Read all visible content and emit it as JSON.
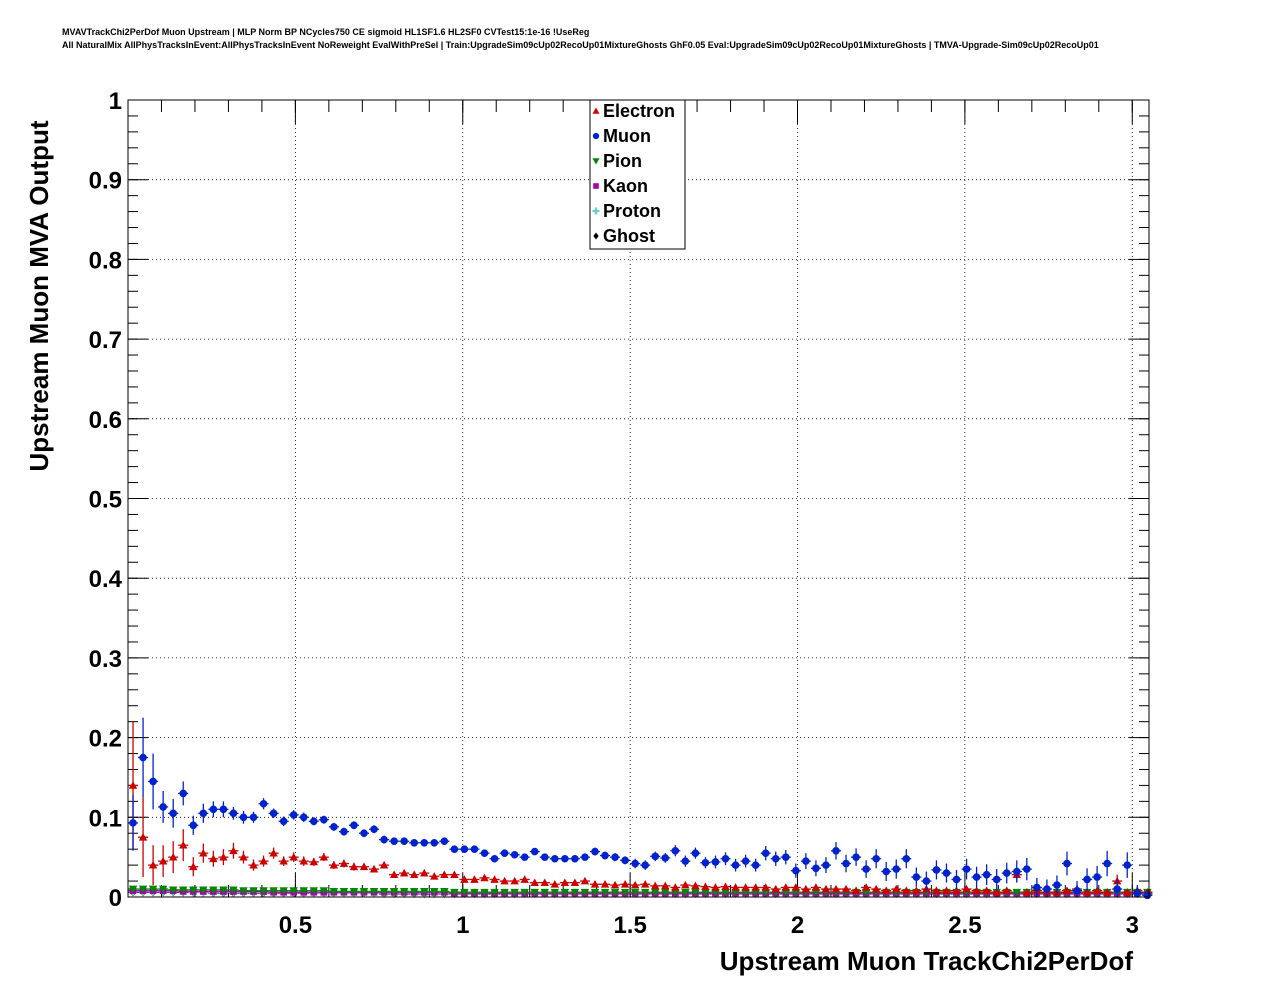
{
  "header": {
    "line1": "MVAVTrackChi2PerDof Muon Upstream | MLP Norm BP NCycles750 CE sigmoid HL1SF1.6 HL2SF0 CVTest15:1e-16 !UseReg",
    "line2": "All NaturalMix AllPhysTracksInEvent:AllPhysTracksInEvent NoReweight EvalWithPreSel | Train:UpgradeSim09cUp02RecoUp01MixtureGhosts GhF0.05 Eval:UpgradeSim09cUp02RecoUp01MixtureGhosts | TMVA-Upgrade-Sim09cUp02RecoUp01"
  },
  "chart_data": {
    "type": "scatter",
    "xlabel": "Upstream Muon TrackChi2PerDof",
    "ylabel": "Upstream Muon MVA Output",
    "xlim": [
      0,
      3.05
    ],
    "ylim": [
      0,
      1
    ],
    "xticks": [
      "0.5",
      "1",
      "1.5",
      "2",
      "2.5",
      "3"
    ],
    "yticks": [
      "0",
      "0.1",
      "0.2",
      "0.3",
      "0.4",
      "0.5",
      "0.6",
      "0.7",
      "0.8",
      "0.9",
      "1"
    ],
    "grid": true,
    "legend_position": "top-center",
    "x": [
      0.015,
      0.045,
      0.075,
      0.105,
      0.135,
      0.165,
      0.195,
      0.225,
      0.255,
      0.285,
      0.315,
      0.345,
      0.375,
      0.405,
      0.435,
      0.465,
      0.495,
      0.525,
      0.555,
      0.585,
      0.615,
      0.645,
      0.675,
      0.705,
      0.735,
      0.765,
      0.795,
      0.825,
      0.855,
      0.885,
      0.915,
      0.945,
      0.975,
      1.005,
      1.035,
      1.065,
      1.095,
      1.125,
      1.155,
      1.185,
      1.215,
      1.245,
      1.275,
      1.305,
      1.335,
      1.365,
      1.395,
      1.425,
      1.455,
      1.485,
      1.515,
      1.545,
      1.575,
      1.605,
      1.635,
      1.665,
      1.695,
      1.725,
      1.755,
      1.785,
      1.815,
      1.845,
      1.875,
      1.905,
      1.935,
      1.965,
      1.995,
      2.025,
      2.055,
      2.085,
      2.115,
      2.145,
      2.175,
      2.205,
      2.235,
      2.265,
      2.295,
      2.325,
      2.355,
      2.385,
      2.415,
      2.445,
      2.475,
      2.505,
      2.535,
      2.565,
      2.595,
      2.625,
      2.655,
      2.685,
      2.715,
      2.745,
      2.775,
      2.805,
      2.835,
      2.865,
      2.895,
      2.925,
      2.955,
      2.985,
      3.015,
      3.045
    ],
    "series": [
      {
        "name": "Electron",
        "color": "#cc0000",
        "marker": "triangle-up",
        "values": [
          0.14,
          0.075,
          0.04,
          0.045,
          0.05,
          0.065,
          0.038,
          0.055,
          0.048,
          0.05,
          0.058,
          0.05,
          0.04,
          0.045,
          0.055,
          0.045,
          0.05,
          0.045,
          0.044,
          0.05,
          0.04,
          0.042,
          0.038,
          0.038,
          0.035,
          0.04,
          0.028,
          0.03,
          0.028,
          0.03,
          0.026,
          0.028,
          0.028,
          0.022,
          0.022,
          0.024,
          0.022,
          0.02,
          0.02,
          0.022,
          0.018,
          0.018,
          0.016,
          0.018,
          0.018,
          0.02,
          0.016,
          0.016,
          0.015,
          0.016,
          0.015,
          0.016,
          0.014,
          0.014,
          0.012,
          0.015,
          0.014,
          0.013,
          0.012,
          0.013,
          0.012,
          0.012,
          0.012,
          0.012,
          0.01,
          0.012,
          0.012,
          0.01,
          0.012,
          0.01,
          0.01,
          0.01,
          0.008,
          0.012,
          0.01,
          0.008,
          0.01,
          0.008,
          0.008,
          0.01,
          0.008,
          0.008,
          0.008,
          0.01,
          0.008,
          0.008,
          0.006,
          0.008,
          0.028,
          0.006,
          0.008,
          0.006,
          0.006,
          0.008,
          0.01,
          0.006,
          0.008,
          0.006,
          0.02,
          0.006,
          0.008,
          0.006
        ],
        "errors": [
          0.08,
          0.05,
          0.025,
          0.02,
          0.02,
          0.02,
          0.012,
          0.012,
          0.01,
          0.01,
          0.01,
          0.008,
          0.007,
          0.007,
          0.007,
          0.006,
          0.006,
          0.006,
          0.005,
          0.005,
          0.005,
          0.005,
          0.005,
          0.004,
          0.004,
          0.004,
          0.004,
          0.004,
          0.004,
          0.004,
          0.004,
          0.004,
          0.004,
          0.003,
          0.003,
          0.003,
          0.003,
          0.003,
          0.003,
          0.003,
          0.003,
          0.003,
          0.003,
          0.003,
          0.003,
          0.003,
          0.003,
          0.003,
          0.003,
          0.003,
          0.003,
          0.003,
          0.003,
          0.003,
          0.003,
          0.003,
          0.003,
          0.003,
          0.003,
          0.003,
          0.003,
          0.003,
          0.003,
          0.003,
          0.003,
          0.003,
          0.003,
          0.003,
          0.003,
          0.003,
          0.003,
          0.003,
          0.003,
          0.003,
          0.003,
          0.003,
          0.003,
          0.003,
          0.003,
          0.003,
          0.003,
          0.003,
          0.003,
          0.003,
          0.003,
          0.003,
          0.003,
          0.003,
          0.008,
          0.003,
          0.003,
          0.003,
          0.003,
          0.003,
          0.005,
          0.003,
          0.004,
          0.003,
          0.008,
          0.003,
          0.004,
          0.003
        ]
      },
      {
        "name": "Muon",
        "color": "#0022cc",
        "marker": "circle",
        "values": [
          0.093,
          0.175,
          0.145,
          0.113,
          0.105,
          0.13,
          0.09,
          0.105,
          0.11,
          0.11,
          0.105,
          0.1,
          0.1,
          0.117,
          0.105,
          0.095,
          0.103,
          0.1,
          0.095,
          0.097,
          0.088,
          0.082,
          0.09,
          0.08,
          0.085,
          0.072,
          0.07,
          0.07,
          0.068,
          0.068,
          0.068,
          0.07,
          0.06,
          0.06,
          0.06,
          0.055,
          0.048,
          0.055,
          0.053,
          0.05,
          0.057,
          0.05,
          0.048,
          0.048,
          0.048,
          0.05,
          0.057,
          0.052,
          0.05,
          0.046,
          0.042,
          0.04,
          0.051,
          0.049,
          0.058,
          0.045,
          0.055,
          0.043,
          0.044,
          0.048,
          0.04,
          0.045,
          0.04,
          0.055,
          0.048,
          0.05,
          0.033,
          0.045,
          0.036,
          0.04,
          0.058,
          0.042,
          0.05,
          0.035,
          0.048,
          0.032,
          0.035,
          0.048,
          0.025,
          0.02,
          0.034,
          0.03,
          0.022,
          0.035,
          0.025,
          0.028,
          0.022,
          0.03,
          0.032,
          0.035,
          0.012,
          0.01,
          0.015,
          0.042,
          0.008,
          0.022,
          0.025,
          0.042,
          0.01,
          0.04,
          0.005,
          0.002
        ],
        "errors": [
          0.035,
          0.05,
          0.035,
          0.02,
          0.018,
          0.015,
          0.012,
          0.012,
          0.01,
          0.01,
          0.008,
          0.008,
          0.007,
          0.007,
          0.006,
          0.006,
          0.006,
          0.006,
          0.005,
          0.005,
          0.005,
          0.005,
          0.005,
          0.005,
          0.005,
          0.005,
          0.004,
          0.004,
          0.004,
          0.004,
          0.004,
          0.004,
          0.004,
          0.004,
          0.004,
          0.004,
          0.004,
          0.004,
          0.004,
          0.004,
          0.004,
          0.004,
          0.004,
          0.004,
          0.004,
          0.004,
          0.005,
          0.005,
          0.005,
          0.005,
          0.006,
          0.006,
          0.006,
          0.006,
          0.007,
          0.007,
          0.007,
          0.007,
          0.008,
          0.008,
          0.008,
          0.008,
          0.008,
          0.009,
          0.009,
          0.009,
          0.009,
          0.01,
          0.01,
          0.01,
          0.011,
          0.011,
          0.011,
          0.011,
          0.012,
          0.012,
          0.012,
          0.012,
          0.012,
          0.012,
          0.012,
          0.012,
          0.012,
          0.013,
          0.013,
          0.013,
          0.013,
          0.013,
          0.014,
          0.014,
          0.012,
          0.012,
          0.012,
          0.015,
          0.012,
          0.014,
          0.014,
          0.016,
          0.012,
          0.016,
          0.01,
          0.006
        ]
      },
      {
        "name": "Pion",
        "color": "#008800",
        "marker": "triangle-down",
        "values": [
          0.01,
          0.01,
          0.01,
          0.01,
          0.009,
          0.009,
          0.009,
          0.009,
          0.009,
          0.009,
          0.009,
          0.008,
          0.008,
          0.008,
          0.008,
          0.008,
          0.008,
          0.008,
          0.008,
          0.008,
          0.007,
          0.007,
          0.007,
          0.007,
          0.007,
          0.007,
          0.007,
          0.007,
          0.007,
          0.007,
          0.007,
          0.007,
          0.006,
          0.006,
          0.006,
          0.006,
          0.006,
          0.006,
          0.006,
          0.006,
          0.006,
          0.006,
          0.006,
          0.006,
          0.006,
          0.006,
          0.006,
          0.006,
          0.006,
          0.006,
          0.006,
          0.006,
          0.006,
          0.006,
          0.006,
          0.006,
          0.006,
          0.006,
          0.006,
          0.006,
          0.006,
          0.006,
          0.006,
          0.006,
          0.006,
          0.006,
          0.006,
          0.006,
          0.006,
          0.006,
          0.006,
          0.006,
          0.006,
          0.006,
          0.006,
          0.006,
          0.006,
          0.006,
          0.006,
          0.006,
          0.006,
          0.006,
          0.006,
          0.006,
          0.006,
          0.006,
          0.006,
          0.006,
          0.006,
          0.006,
          0.006,
          0.006,
          0.006,
          0.006,
          0.006,
          0.006,
          0.006,
          0.006,
          0.006,
          0.006,
          0.006,
          0.006
        ]
      },
      {
        "name": "Kaon",
        "color": "#aa00aa",
        "marker": "square",
        "values": [
          0.008,
          0.008,
          0.008,
          0.008,
          0.008,
          0.007,
          0.007,
          0.007,
          0.007,
          0.007,
          0.007,
          0.007,
          0.007,
          0.007,
          0.006,
          0.006,
          0.006,
          0.006,
          0.006,
          0.006,
          0.006,
          0.006,
          0.006,
          0.006,
          0.006,
          0.006,
          0.006,
          0.006,
          0.006,
          0.006,
          0.006,
          0.006,
          0.005,
          0.005,
          0.005,
          0.005,
          0.005,
          0.005,
          0.005,
          0.005,
          0.005,
          0.005,
          0.005,
          0.005,
          0.005,
          0.005,
          0.005,
          0.005,
          0.005,
          0.005,
          0.005,
          0.005,
          0.005,
          0.005,
          0.005,
          0.005,
          0.005,
          0.005,
          0.005,
          0.005,
          0.005,
          0.005,
          0.005,
          0.005,
          0.005,
          0.005,
          0.005,
          0.005,
          0.005,
          0.005,
          0.005,
          0.005,
          0.005,
          0.005,
          0.005,
          0.005,
          0.005,
          0.005,
          0.005,
          0.005,
          0.005,
          0.005,
          0.005,
          0.005,
          0.005,
          0.005,
          0.005,
          0.005,
          0.005,
          0.005,
          0.005,
          0.005,
          0.005,
          0.005,
          0.005,
          0.005,
          0.005,
          0.005,
          0.005,
          0.005,
          0.005,
          0.005
        ]
      },
      {
        "name": "Proton",
        "color": "#66cccc",
        "marker": "cross",
        "values": [
          0.007,
          0.007,
          0.007,
          0.007,
          0.007,
          0.007,
          0.006,
          0.006,
          0.006,
          0.006,
          0.006,
          0.006,
          0.006,
          0.006,
          0.006,
          0.006,
          0.006,
          0.006,
          0.005,
          0.005,
          0.005,
          0.005,
          0.005,
          0.005,
          0.005,
          0.005,
          0.005,
          0.005,
          0.005,
          0.005,
          0.005,
          0.005,
          0.005,
          0.005,
          0.005,
          0.005,
          0.005,
          0.005,
          0.005,
          0.005,
          0.005,
          0.005,
          0.005,
          0.005,
          0.005,
          0.005,
          0.005,
          0.005,
          0.005,
          0.005,
          0.005,
          0.005,
          0.005,
          0.005,
          0.005,
          0.005,
          0.005,
          0.005,
          0.005,
          0.005,
          0.005,
          0.005,
          0.005,
          0.005,
          0.005,
          0.005,
          0.005,
          0.005,
          0.005,
          0.005,
          0.005,
          0.005,
          0.005,
          0.005,
          0.005,
          0.005,
          0.005,
          0.005,
          0.005,
          0.005,
          0.005,
          0.005,
          0.005,
          0.005,
          0.005,
          0.005,
          0.005,
          0.005,
          0.005,
          0.005,
          0.005,
          0.005,
          0.005,
          0.005,
          0.005,
          0.005,
          0.005,
          0.005,
          0.005,
          0.005,
          0.005,
          0.005
        ]
      },
      {
        "name": "Ghost",
        "color": "#000000",
        "marker": "diamond",
        "values": [
          0.006,
          0.006,
          0.006,
          0.006,
          0.006,
          0.006,
          0.006,
          0.006,
          0.005,
          0.005,
          0.005,
          0.005,
          0.005,
          0.005,
          0.005,
          0.005,
          0.005,
          0.005,
          0.005,
          0.005,
          0.005,
          0.005,
          0.005,
          0.005,
          0.005,
          0.004,
          0.004,
          0.004,
          0.004,
          0.004,
          0.004,
          0.004,
          0.004,
          0.004,
          0.004,
          0.004,
          0.004,
          0.004,
          0.004,
          0.004,
          0.004,
          0.004,
          0.004,
          0.004,
          0.004,
          0.004,
          0.004,
          0.004,
          0.004,
          0.004,
          0.004,
          0.004,
          0.004,
          0.004,
          0.004,
          0.004,
          0.004,
          0.004,
          0.004,
          0.004,
          0.004,
          0.004,
          0.004,
          0.004,
          0.004,
          0.004,
          0.004,
          0.004,
          0.004,
          0.004,
          0.004,
          0.004,
          0.004,
          0.004,
          0.004,
          0.004,
          0.004,
          0.004,
          0.004,
          0.004,
          0.004,
          0.004,
          0.004,
          0.004,
          0.004,
          0.004,
          0.004,
          0.004,
          0.004,
          0.004,
          0.004,
          0.004,
          0.004,
          0.004,
          0.004,
          0.004,
          0.004,
          0.004,
          0.004,
          0.004,
          0.004,
          0.004
        ]
      }
    ]
  }
}
